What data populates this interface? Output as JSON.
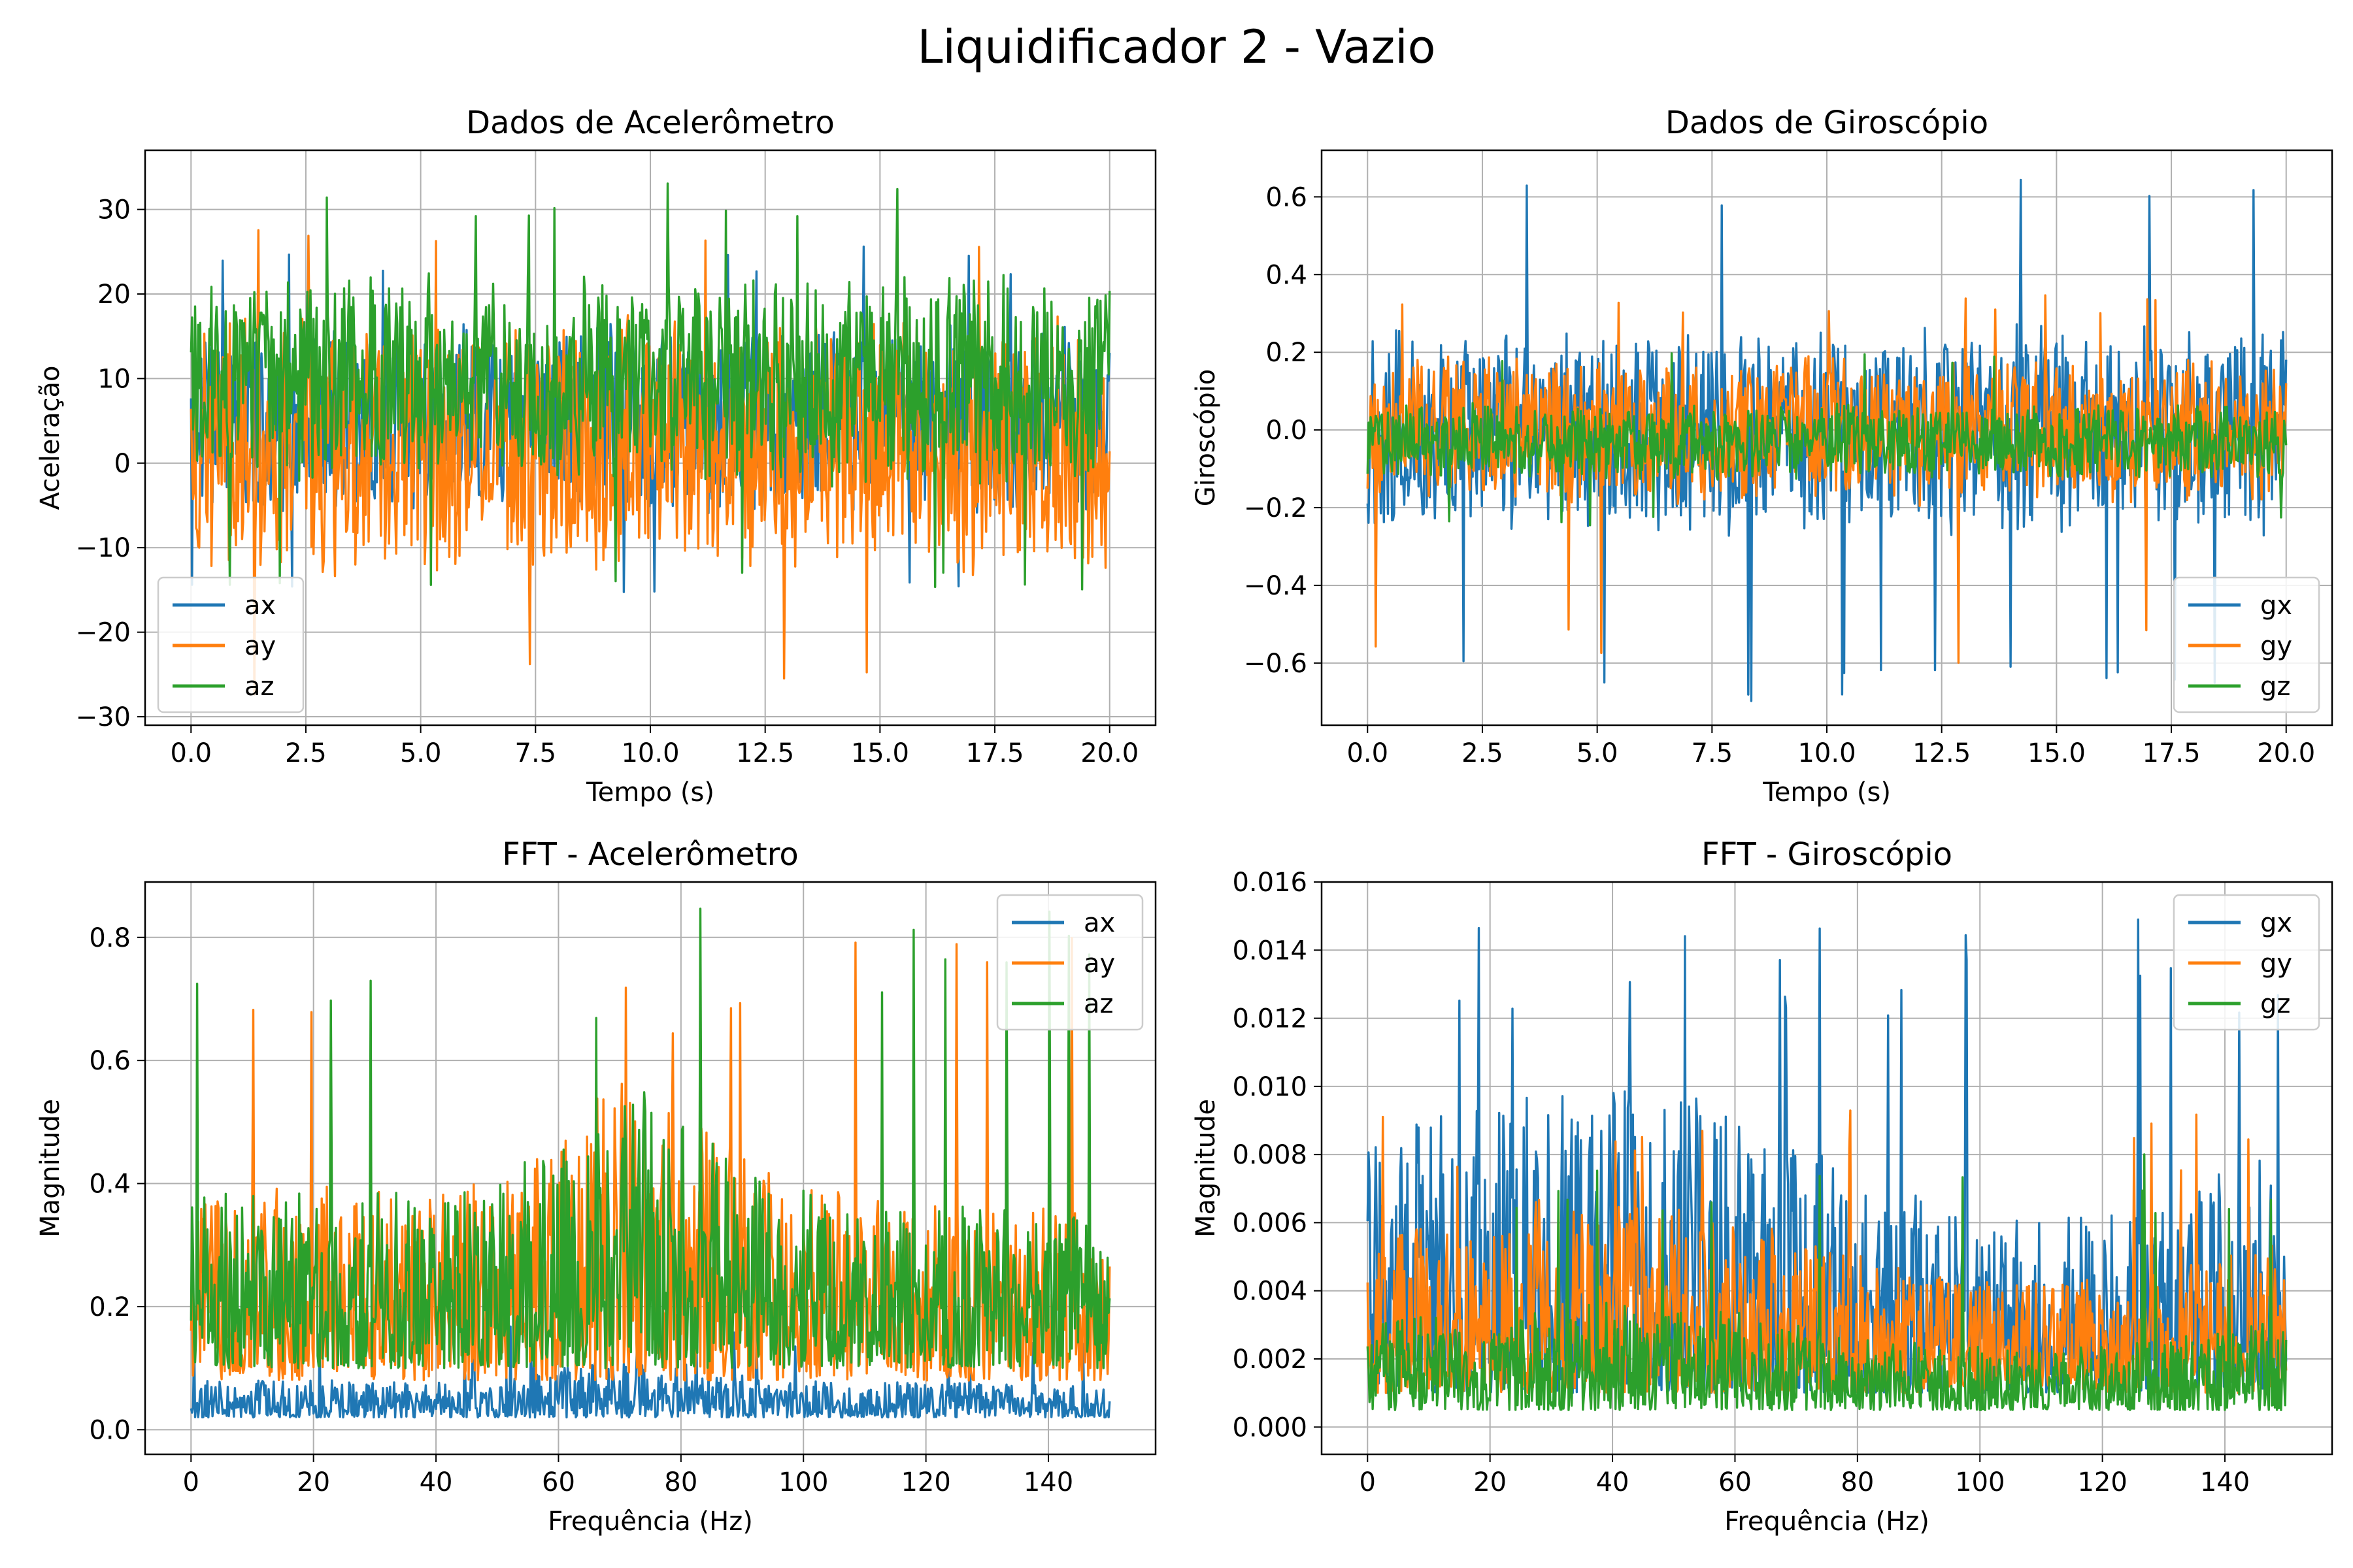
{
  "figure": {
    "title": "Liquidificador 2 - Vazio"
  },
  "colors": {
    "blue": "#1f77b4",
    "orange": "#ff7f0e",
    "green": "#2ca02c",
    "grid": "#b0b0b0",
    "axis": "#000000"
  },
  "chart_data": [
    {
      "id": "acc-time",
      "type": "line",
      "title": "Dados de Acelerômetro",
      "xlabel": "Tempo (s)",
      "ylabel": "Aceleração",
      "xlim": [
        -1.0,
        21.0
      ],
      "ylim": [
        -31,
        37
      ],
      "xticks": [
        0.0,
        2.5,
        5.0,
        7.5,
        10.0,
        12.5,
        15.0,
        17.5,
        20.0
      ],
      "xtick_labels": [
        "0.0",
        "2.5",
        "5.0",
        "7.5",
        "10.0",
        "12.5",
        "15.0",
        "17.5",
        "20.0"
      ],
      "yticks": [
        -30,
        -20,
        -10,
        0,
        10,
        20,
        30
      ],
      "ytick_labels": [
        "−30",
        "−20",
        "−10",
        "0",
        "10",
        "20",
        "30"
      ],
      "grid": true,
      "legend": "lower left",
      "x_range": [
        0,
        20
      ],
      "series": [
        {
          "name": "ax",
          "color": "#1f77b4",
          "center": 5,
          "amp": 12,
          "peak_max": 26,
          "peak_min": -16
        },
        {
          "name": "ay",
          "color": "#ff7f0e",
          "center": 2,
          "amp": 16,
          "peak_max": 30,
          "peak_min": -27.5
        },
        {
          "name": "az",
          "color": "#2ca02c",
          "center": 10,
          "amp": 13,
          "peak_max": 34,
          "peak_min": -15
        }
      ]
    },
    {
      "id": "gyro-time",
      "type": "line",
      "title": "Dados de Giroscópio",
      "xlabel": "Tempo (s)",
      "ylabel": "Giroscópio",
      "xlim": [
        -1.0,
        21.0
      ],
      "ylim": [
        -0.76,
        0.72
      ],
      "xticks": [
        0.0,
        2.5,
        5.0,
        7.5,
        10.0,
        12.5,
        15.0,
        17.5,
        20.0
      ],
      "xtick_labels": [
        "0.0",
        "2.5",
        "5.0",
        "7.5",
        "10.0",
        "12.5",
        "15.0",
        "17.5",
        "20.0"
      ],
      "yticks": [
        -0.6,
        -0.4,
        -0.2,
        0.0,
        0.2,
        0.4,
        0.6
      ],
      "ytick_labels": [
        "−0.6",
        "−0.4",
        "−0.2",
        "0.0",
        "0.2",
        "0.4",
        "0.6"
      ],
      "grid": true,
      "legend": "lower right",
      "x_range": [
        0,
        20
      ],
      "series": [
        {
          "name": "gx",
          "color": "#1f77b4",
          "center": 0.0,
          "amp": 0.28,
          "peak_max": 0.65,
          "peak_min": -0.7
        },
        {
          "name": "gy",
          "color": "#ff7f0e",
          "center": 0.0,
          "amp": 0.2,
          "peak_max": 0.35,
          "peak_min": -0.6
        },
        {
          "name": "gz",
          "color": "#2ca02c",
          "center": -0.03,
          "amp": 0.1,
          "peak_max": 0.2,
          "peak_min": -0.25
        }
      ]
    },
    {
      "id": "acc-fft",
      "type": "line",
      "title": "FFT - Acelerômetro",
      "xlabel": "Frequência (Hz)",
      "ylabel": "Magnitude",
      "xlim": [
        -7.5,
        157.5
      ],
      "ylim": [
        -0.04,
        0.89
      ],
      "xticks": [
        0,
        20,
        40,
        60,
        80,
        100,
        120,
        140
      ],
      "xtick_labels": [
        "0",
        "20",
        "40",
        "60",
        "80",
        "100",
        "120",
        "140"
      ],
      "yticks": [
        0.0,
        0.2,
        0.4,
        0.6,
        0.8
      ],
      "ytick_labels": [
        "0.0",
        "0.2",
        "0.4",
        "0.6",
        "0.8"
      ],
      "grid": true,
      "legend": "upper right",
      "x_range": [
        0,
        150
      ],
      "series": [
        {
          "name": "ax",
          "color": "#1f77b4",
          "base": 0.02,
          "spread": 0.08,
          "peak_max": 0.17
        },
        {
          "name": "ay",
          "color": "#ff7f0e",
          "base": 0.08,
          "spread": 0.42,
          "peak_max": 0.83
        },
        {
          "name": "az",
          "color": "#2ca02c",
          "base": 0.1,
          "spread": 0.38,
          "peak_max": 0.85
        }
      ]
    },
    {
      "id": "gyro-fft",
      "type": "line",
      "title": "FFT - Giroscópio",
      "xlabel": "Frequência (Hz)",
      "ylabel": "Magnitude",
      "xlim": [
        -7.5,
        157.5
      ],
      "ylim": [
        -0.0008,
        0.016
      ],
      "xticks": [
        0,
        20,
        40,
        60,
        80,
        100,
        120,
        140
      ],
      "xtick_labels": [
        "0",
        "20",
        "40",
        "60",
        "80",
        "100",
        "120",
        "140"
      ],
      "yticks": [
        0.0,
        0.002,
        0.004,
        0.006,
        0.008,
        0.01,
        0.012,
        0.014,
        0.016
      ],
      "ytick_labels": [
        "0.000",
        "0.002",
        "0.004",
        "0.006",
        "0.008",
        "0.010",
        "0.012",
        "0.014",
        "0.016"
      ],
      "grid": true,
      "legend": "upper right",
      "x_range": [
        0,
        150
      ],
      "series": [
        {
          "name": "gx",
          "color": "#1f77b4",
          "base": 0.001,
          "spread": 0.008,
          "peak_max": 0.0153
        },
        {
          "name": "gy",
          "color": "#ff7f0e",
          "base": 0.001,
          "spread": 0.005,
          "peak_max": 0.0093
        },
        {
          "name": "gz",
          "color": "#2ca02c",
          "base": 0.0005,
          "spread": 0.0028,
          "peak_max": 0.0082
        }
      ]
    }
  ]
}
